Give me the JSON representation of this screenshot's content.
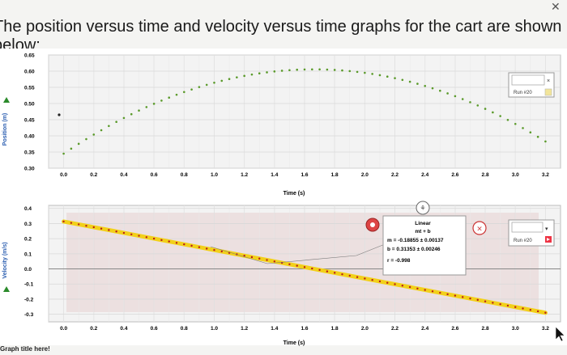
{
  "question": {
    "line1": "The position versus time and velocity versus time graphs for the cart are shown",
    "line2": "below:"
  },
  "footer_text": "Graph title here!",
  "chart_data": [
    {
      "type": "scatter",
      "name": "position-graph",
      "ylabel": "Position (m)",
      "xlabel": "Time (s)",
      "xlim": [
        -0.1,
        3.3
      ],
      "ylim": [
        0.3,
        0.65
      ],
      "x_ticks": [
        "0.0",
        "0.2",
        "0.4",
        "0.6",
        "0.8",
        "1.0",
        "1.2",
        "1.4",
        "1.6",
        "1.8",
        "2.0",
        "2.2",
        "2.4",
        "2.6",
        "2.8",
        "3.0",
        "3.2"
      ],
      "y_ticks": [
        "0.65",
        "0.60",
        "0.55",
        "0.50",
        "0.45",
        "0.40",
        "0.35",
        "0.30"
      ],
      "series": [
        {
          "name": "Run #20",
          "color": "#5a9a2a",
          "x_start": 0.0,
          "x_end": 3.2,
          "step": 0.05,
          "model": {
            "y0": 0.345,
            "v0": 0.31353,
            "half_a": -0.0943
          }
        }
      ],
      "stray_point": {
        "x": -0.03,
        "y": 0.465
      },
      "legend": {
        "run_label": "Run #20"
      }
    },
    {
      "type": "scatter",
      "name": "velocity-graph",
      "ylabel": "Velocity (m/s)",
      "xlabel": "Time (s)",
      "xlim": [
        -0.1,
        3.3
      ],
      "ylim": [
        -0.35,
        0.42
      ],
      "x_ticks": [
        "0.0",
        "0.2",
        "0.4",
        "0.6",
        "0.8",
        "1.0",
        "1.2",
        "1.4",
        "1.6",
        "1.8",
        "2.0",
        "2.2",
        "2.4",
        "2.6",
        "2.8",
        "3.0",
        "3.2"
      ],
      "y_ticks": [
        "0.4",
        "0.3",
        "0.2",
        "0.1",
        "0.0",
        "-0.1",
        "-0.2",
        "-0.3"
      ],
      "series": [
        {
          "name": "Run #20",
          "color": "#b81c1c",
          "x_start": 0.0,
          "x_end": 3.2,
          "step": 0.05,
          "model": {
            "m": -0.18855,
            "b": 0.31353
          }
        }
      ],
      "fit": {
        "title": "Linear",
        "equation": "mt + b",
        "m_text": "m = -0.18855 ± 0.00137",
        "b_text": "b = 0.31353 ± 0.00246",
        "r_text": "r = -0.998"
      },
      "legend": {
        "run_label": "Run #20"
      }
    }
  ]
}
